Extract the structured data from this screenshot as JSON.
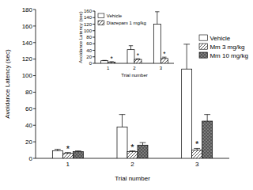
{
  "chart_data": [
    {
      "type": "bar",
      "x_label": "Trial number",
      "y_label": "Avoidance Latency (sec)",
      "categories": [
        "1",
        "2",
        "3"
      ],
      "series": [
        {
          "name": "Vehicle",
          "color": "#ffffff",
          "values": [
            9,
            38,
            108
          ],
          "errors": [
            2,
            15,
            30
          ]
        },
        {
          "name": "Mm 3 mg/kg",
          "color": "#333333",
          "values": [
            6,
            8,
            10
          ],
          "errors": [
            1,
            1,
            2
          ]
        },
        {
          "name": "Mm 10 mg/kg",
          "color": "#555555",
          "values": [
            8,
            16,
            45
          ],
          "errors": [
            1,
            3,
            8
          ]
        }
      ],
      "ylim": [
        0,
        180
      ],
      "yticks": [
        0,
        20,
        40,
        60,
        80,
        100,
        120,
        140,
        160,
        180
      ],
      "legend": "upper right",
      "annotations": [
        {
          "text": "*",
          "category": "1",
          "series": "Mm 3 mg/kg"
        },
        {
          "text": "*",
          "category": "2",
          "series": "Mm 3 mg/kg"
        },
        {
          "text": "*",
          "category": "3",
          "series": "Mm 3 mg/kg"
        }
      ]
    },
    {
      "type": "bar",
      "x_label": "Trial number",
      "y_label": "Avoidance Latency (sec)",
      "categories": [
        "1",
        "2",
        "3"
      ],
      "series": [
        {
          "name": "Vehicle",
          "color": "#ffffff",
          "values": [
            8,
            42,
            120
          ],
          "errors": [
            1,
            12,
            38
          ]
        },
        {
          "name": "Diazepam 1 mg/kg",
          "color": "#333333",
          "values": [
            4,
            12,
            15
          ],
          "errors": [
            1,
            2,
            4
          ]
        }
      ],
      "ylim": [
        0,
        160
      ],
      "yticks": [
        0,
        20,
        40,
        60,
        80,
        100,
        120,
        140,
        160
      ],
      "legend": "upper left",
      "annotations": [
        {
          "text": "*",
          "category": "1",
          "series": "Diazepam 1 mg/kg"
        },
        {
          "text": "*",
          "category": "2",
          "series": "Diazepam 1 mg/kg"
        },
        {
          "text": "*",
          "category": "3",
          "series": "Diazepam 1 mg/kg"
        }
      ]
    }
  ]
}
